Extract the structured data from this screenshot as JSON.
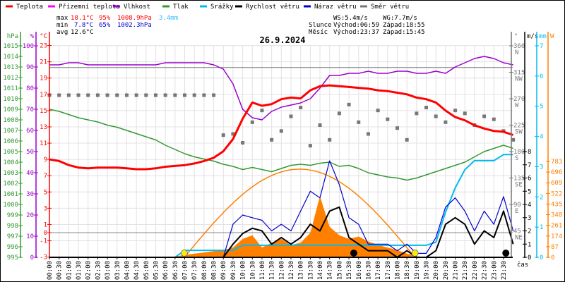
{
  "legend": [
    {
      "label": "Teplota",
      "color": "#ff0000"
    },
    {
      "label": "Přízemní teplota",
      "color": "#ff00ff"
    },
    {
      "label": "Vlhkost",
      "color": "#9900cc"
    },
    {
      "label": "Tlak",
      "color": "#339933"
    },
    {
      "label": "Srážky",
      "color": "#00bbee"
    },
    {
      "label": "Rychlost větru",
      "color": "#000000"
    },
    {
      "label": "Náraz větru",
      "color": "#0000cc"
    },
    {
      "label": "Směr větru",
      "color": "#777777"
    }
  ],
  "stats": {
    "max": {
      "label": "max",
      "temp": "18.1°C",
      "hum": "95%",
      "press": "1008.9hPa",
      "rain": "3.4mm"
    },
    "min": {
      "label": "min",
      "temp": "7.8°C",
      "hum": "65%",
      "press": "1002.3hPa"
    },
    "avg": {
      "label": "avg",
      "temp": "12.6°C"
    },
    "ws": "WS:5.4m/s",
    "wg": "WG:7.7m/s",
    "sun": {
      "label": "Slunce",
      "rise": "Východ:06:59",
      "set": "Západ:18:55"
    },
    "moon": {
      "label": "Měsíc",
      "rise": "Východ:23:37",
      "set": "Západ:15:45"
    }
  },
  "chart_data": {
    "type": "line",
    "title": "26.9.2024",
    "xlabel": "čas",
    "x_ticks": [
      "00:00",
      "00:30",
      "01:00",
      "01:30",
      "02:00",
      "02:30",
      "03:00",
      "03:30",
      "04:00",
      "04:30",
      "05:00",
      "05:30",
      "06:00",
      "06:30",
      "07:00",
      "07:30",
      "08:00",
      "08:30",
      "09:00",
      "09:30",
      "10:00",
      "10:30",
      "11:00",
      "11:30",
      "12:00",
      "12:30",
      "13:00",
      "13:30",
      "14:00",
      "14:30",
      "15:00",
      "15:30",
      "16:00",
      "16:30",
      "17:00",
      "17:30",
      "18:00",
      "18:30",
      "19:00",
      "19:30",
      "20:00",
      "20:30",
      "21:00",
      "21:30",
      "22:00",
      "22:30",
      "23:00",
      "23:30"
    ],
    "x_step_hours": 0.5,
    "axes": {
      "hpa": {
        "unit": "hPa",
        "range": [
          995,
          1015
        ],
        "ticks": [
          995,
          996,
          997,
          998,
          999,
          1000,
          1001,
          1002,
          1003,
          1004,
          1005,
          1006,
          1007,
          1008,
          1009,
          1010,
          1011,
          1012,
          1013,
          1014,
          1015
        ]
      },
      "humidity": {
        "unit": "%",
        "range": [
          0,
          100
        ],
        "ticks": [
          0,
          10,
          20,
          30,
          40,
          50,
          60,
          70,
          80,
          90,
          100
        ]
      },
      "temp": {
        "unit": "°C",
        "range": [
          -3,
          23
        ],
        "ticks": [
          -3,
          -1,
          0,
          1,
          3,
          5,
          7,
          9,
          11,
          13,
          15,
          17,
          19,
          21,
          23
        ]
      },
      "direction": {
        "unit": "°",
        "range": [
          0,
          360
        ],
        "ticks": [
          45,
          90,
          135,
          180,
          225,
          270,
          315,
          360
        ],
        "compass": [
          "NE",
          "E",
          "SE",
          "S",
          "SW",
          "W",
          "NW",
          "N"
        ]
      },
      "wind": {
        "unit": "m/s",
        "range": [
          0,
          8
        ],
        "ticks": [
          0,
          1,
          2,
          3,
          4,
          5,
          6,
          7,
          8
        ]
      },
      "rain": {
        "unit": "mm",
        "range": [
          0,
          7
        ],
        "ticks": [
          0,
          1,
          2,
          3,
          4,
          5,
          6,
          7
        ]
      },
      "solar": {
        "unit": "W",
        "range": [
          0,
          783
        ],
        "ticks": [
          0,
          87,
          174,
          261,
          348,
          435,
          522,
          609,
          696,
          783
        ]
      }
    },
    "series": {
      "temperature": [
        9.0,
        8.8,
        8.3,
        8.0,
        7.9,
        8.0,
        8.0,
        8.0,
        7.9,
        7.8,
        7.8,
        7.9,
        8.1,
        8.2,
        8.3,
        8.5,
        8.8,
        9.2,
        10.0,
        11.5,
        14.0,
        16.0,
        15.6,
        15.8,
        16.4,
        16.6,
        16.5,
        17.5,
        18.0,
        18.1,
        18.0,
        17.9,
        17.8,
        17.7,
        17.5,
        17.4,
        17.2,
        17.0,
        16.6,
        16.4,
        16.0,
        15.0,
        14.2,
        13.8,
        13.2,
        12.8,
        12.5,
        12.4,
        12.0
      ],
      "ground_temperature": 20.3,
      "humidity": [
        91,
        91,
        92,
        92,
        91,
        91,
        91,
        91,
        91,
        91,
        91,
        91,
        92,
        92,
        92,
        92,
        92,
        91,
        89,
        82,
        70,
        66,
        65,
        69,
        71,
        72,
        73,
        75,
        80,
        86,
        86,
        87,
        87,
        88,
        87,
        87,
        88,
        88,
        87,
        87,
        88,
        87,
        90,
        92,
        94,
        95,
        94,
        92,
        91
      ],
      "pressure": [
        1009,
        1008.8,
        1008.5,
        1008.2,
        1008,
        1007.8,
        1007.5,
        1007.3,
        1007,
        1006.7,
        1006.4,
        1006.1,
        1005.6,
        1005.2,
        1004.8,
        1004.5,
        1004.3,
        1004.1,
        1003.8,
        1003.6,
        1003.3,
        1003.5,
        1003.3,
        1003.1,
        1003.4,
        1003.7,
        1003.8,
        1003.7,
        1003.9,
        1004.0,
        1003.6,
        1003.7,
        1003.4,
        1003.0,
        1002.8,
        1002.6,
        1002.5,
        1002.3,
        1002.5,
        1002.8,
        1003.1,
        1003.4,
        1003.7,
        1004.0,
        1004.5,
        1005.0,
        1005.3,
        1005.6,
        1005.3
      ],
      "rain_cumulative": [
        0,
        0,
        0,
        0,
        0,
        0,
        0,
        0,
        0,
        0,
        0,
        0,
        0,
        0,
        0.23,
        0.23,
        0.23,
        0.23,
        0.23,
        0.23,
        0.4,
        0.4,
        0.4,
        0.4,
        0.4,
        0.4,
        0.4,
        0.4,
        0.4,
        0.4,
        0.4,
        0.4,
        0.4,
        0.4,
        0.4,
        0.4,
        0.4,
        0.4,
        0.4,
        0.4,
        0.5,
        1.5,
        2.3,
        2.9,
        3.2,
        3.2,
        3.2,
        3.4,
        3.4
      ],
      "wind_speed": [
        0,
        0,
        0,
        0,
        0,
        0,
        0,
        0,
        0,
        0,
        0,
        0,
        0,
        0,
        0,
        0,
        0,
        0,
        0,
        1.0,
        1.8,
        2.2,
        2.0,
        1.0,
        1.5,
        1.0,
        1.5,
        2.5,
        2.0,
        3.5,
        3.8,
        1.5,
        1.0,
        0.5,
        0.5,
        0.5,
        0,
        0.5,
        0,
        0,
        0.5,
        2.5,
        3.0,
        2.5,
        1.0,
        2.0,
        1.5,
        3.5,
        1.0
      ],
      "wind_gust": [
        0,
        0,
        0,
        0,
        0,
        0,
        0,
        0,
        0,
        0,
        0,
        0,
        0,
        0,
        0,
        0,
        0,
        0,
        0,
        2.5,
        3.2,
        3.0,
        2.8,
        2.0,
        2.5,
        2.0,
        3.5,
        5.0,
        4.5,
        7.3,
        5.5,
        3.0,
        2.5,
        1.0,
        1.0,
        1.0,
        0.5,
        1.0,
        0.3,
        0.3,
        1.5,
        3.8,
        4.5,
        3.5,
        2.0,
        3.5,
        2.5,
        4.6,
        2.0
      ],
      "wind_direction": [
        276,
        276,
        276,
        276,
        276,
        276,
        276,
        276,
        276,
        276,
        276,
        276,
        276,
        276,
        276,
        276,
        276,
        276,
        208,
        210,
        195,
        230,
        250,
        200,
        215,
        240,
        255,
        190,
        225,
        200,
        245,
        260,
        230,
        210,
        250,
        235,
        220,
        200,
        245,
        255,
        240,
        230,
        250,
        245,
        225,
        240,
        235,
        215,
        200
      ],
      "solar": [
        0,
        0,
        0,
        0,
        0,
        0,
        0,
        0,
        0,
        0,
        0,
        0,
        0,
        5,
        20,
        30,
        40,
        50,
        60,
        80,
        150,
        180,
        80,
        120,
        150,
        100,
        120,
        200,
        500,
        250,
        180,
        150,
        170,
        130,
        100,
        80,
        60,
        30,
        10,
        0,
        0,
        0,
        0,
        0,
        0,
        0,
        0,
        0,
        0
      ],
      "solar_clear_sky_peak": 720
    },
    "markers": {
      "sunrise_h": 6.98,
      "sunset_h": 18.92,
      "moonrise_h": 23.62,
      "moonset_h": 15.75
    }
  }
}
